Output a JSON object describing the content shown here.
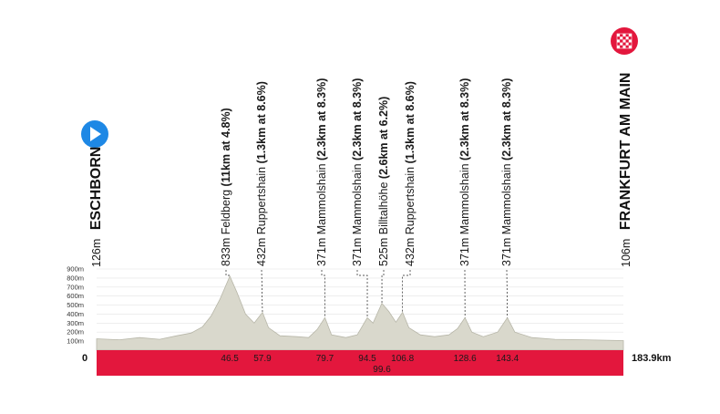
{
  "chart_data": {
    "type": "area",
    "title": "",
    "y_ticks": [
      "100m",
      "200m",
      "300m",
      "400m",
      "500m",
      "600m",
      "700m",
      "800m",
      "900m"
    ],
    "ylim": [
      0,
      900
    ],
    "xlim": [
      0,
      183.9
    ],
    "x_start_label": "0",
    "x_end_label": "183.9km",
    "start": {
      "name": "ESCHBORN",
      "altitude": "126m",
      "icon": "play-arrow-icon",
      "color": "#1e88e5"
    },
    "finish": {
      "name": "FRANKFURT AM MAIN",
      "altitude": "106m",
      "icon": "checkered-flag-icon",
      "color": "#e3173d"
    },
    "climbs": [
      {
        "km": 46.5,
        "km_label": "46.5",
        "altitude_label": "833m",
        "name": "Feldberg",
        "detail": "(11km at 4.8%)",
        "elevation": 820
      },
      {
        "km": 57.9,
        "km_label": "57.9",
        "altitude_label": "432m",
        "name": "Ruppertshain",
        "detail": "(1.3km at 8.6%)",
        "elevation": 420
      },
      {
        "km": 79.7,
        "km_label": "79.7",
        "altitude_label": "371m",
        "name": "Mammolshain",
        "detail": "(2.3km at 8.3%)",
        "elevation": 360
      },
      {
        "km": 94.5,
        "km_label": "94.5",
        "altitude_label": "371m",
        "name": "Mammolshain",
        "detail": "(2.3km at 8.3%)",
        "elevation": 360
      },
      {
        "km": 99.6,
        "km_label": "99.6",
        "altitude_label": "525m",
        "name": "Billtalhöhe",
        "detail": "(2.6km at 6.2%)",
        "elevation": 520
      },
      {
        "km": 106.8,
        "km_label": "106.8",
        "altitude_label": "432m",
        "name": "Ruppertshain",
        "detail": "(1.3km at 8.6%)",
        "elevation": 420
      },
      {
        "km": 128.6,
        "km_label": "128.6",
        "altitude_label": "371m",
        "name": "Mammolshain",
        "detail": "(2.3km at 8.3%)",
        "elevation": 360
      },
      {
        "km": 143.4,
        "km_label": "143.4",
        "altitude_label": "371m",
        "name": "Mammolshain",
        "detail": "(2.3km at 8.3%)",
        "elevation": 360
      }
    ],
    "profile": [
      [
        0,
        126
      ],
      [
        8,
        115
      ],
      [
        15,
        140
      ],
      [
        22,
        120
      ],
      [
        28,
        160
      ],
      [
        33,
        190
      ],
      [
        37,
        260
      ],
      [
        40,
        380
      ],
      [
        43,
        560
      ],
      [
        46.5,
        820
      ],
      [
        49,
        640
      ],
      [
        52,
        400
      ],
      [
        55,
        300
      ],
      [
        57.9,
        420
      ],
      [
        60,
        250
      ],
      [
        64,
        160
      ],
      [
        70,
        150
      ],
      [
        74,
        140
      ],
      [
        77,
        230
      ],
      [
        79.7,
        360
      ],
      [
        82,
        170
      ],
      [
        87,
        140
      ],
      [
        91,
        170
      ],
      [
        94.5,
        360
      ],
      [
        96.5,
        300
      ],
      [
        99.6,
        520
      ],
      [
        102,
        430
      ],
      [
        104.5,
        310
      ],
      [
        106.8,
        420
      ],
      [
        109,
        250
      ],
      [
        113,
        170
      ],
      [
        118,
        150
      ],
      [
        123,
        170
      ],
      [
        126,
        240
      ],
      [
        128.6,
        360
      ],
      [
        131,
        200
      ],
      [
        135,
        150
      ],
      [
        140,
        200
      ],
      [
        143.4,
        360
      ],
      [
        146,
        200
      ],
      [
        152,
        140
      ],
      [
        160,
        120
      ],
      [
        170,
        115
      ],
      [
        178,
        110
      ],
      [
        183.9,
        106
      ]
    ],
    "colors": {
      "band": "#e3173d",
      "profile_fill": "#d9d8cc",
      "profile_edge": "#b7b6a8"
    }
  }
}
